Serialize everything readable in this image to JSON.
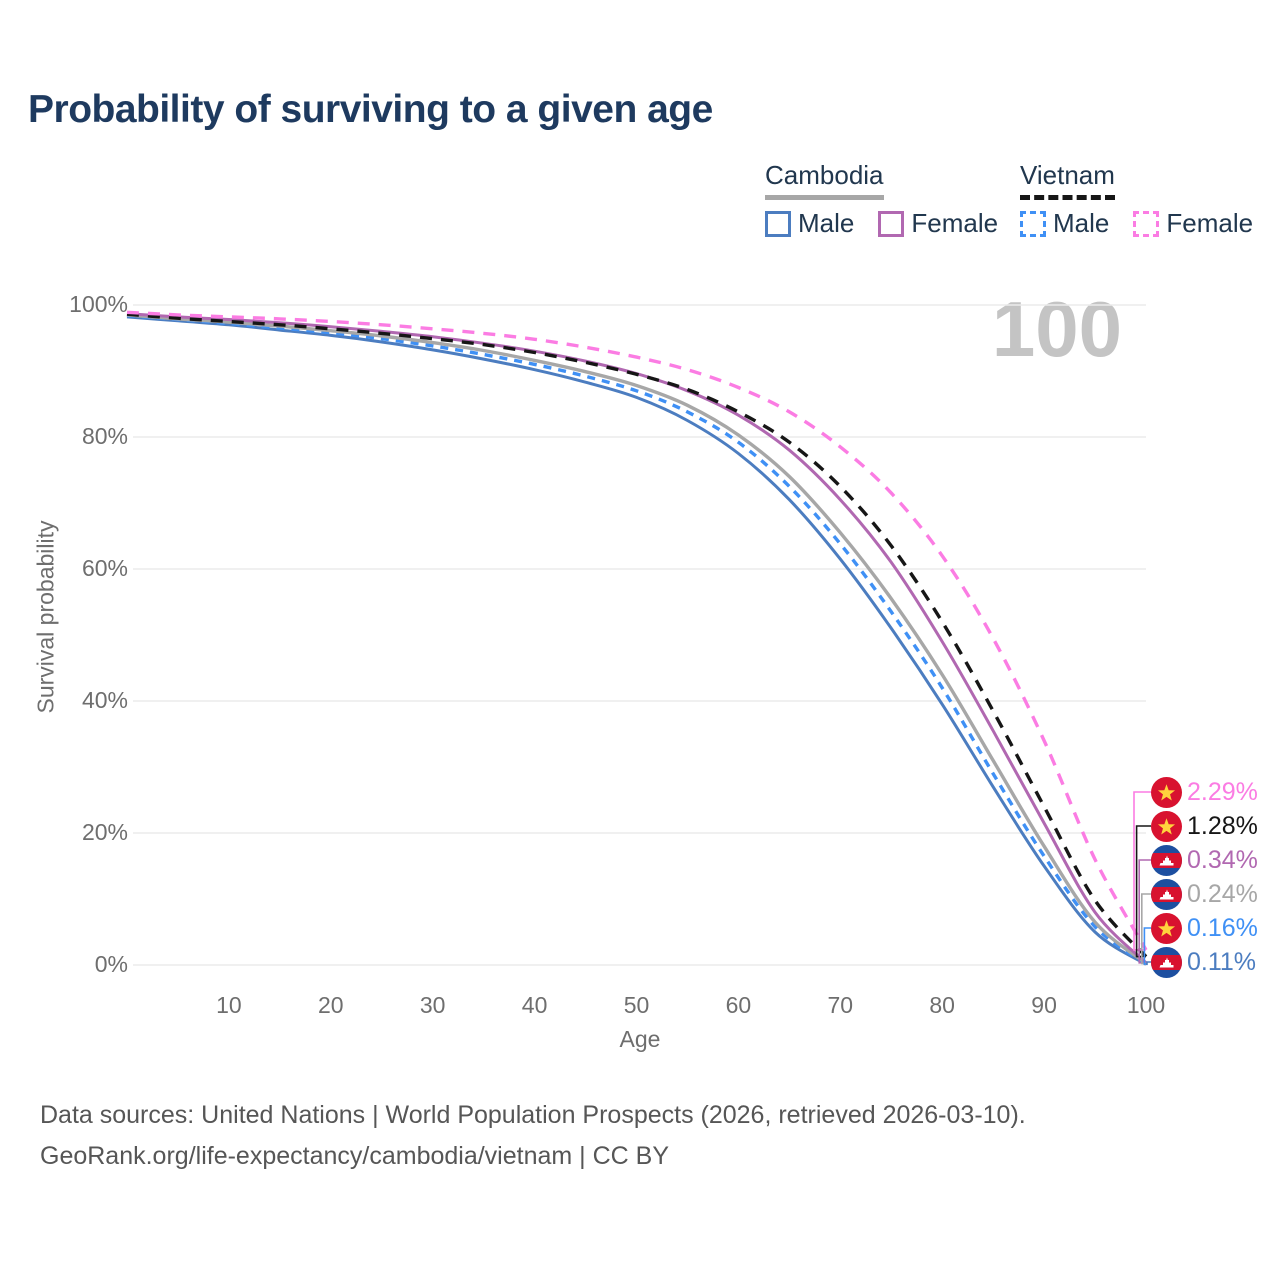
{
  "header": {
    "title": "Probability of surviving to a given age"
  },
  "legend": {
    "groups": [
      {
        "name": "Cambodia",
        "color": "#a7a7a7",
        "dashed": false,
        "items": [
          {
            "label": "Male",
            "color": "#4c7dc0",
            "dashed": false
          },
          {
            "label": "Female",
            "color": "#b168b1",
            "dashed": false
          }
        ]
      },
      {
        "name": "Vietnam",
        "color": "#161616",
        "dashed": true,
        "items": [
          {
            "label": "Male",
            "color": "#3f90f5",
            "dashed": true
          },
          {
            "label": "Female",
            "color": "#fb7ce3",
            "dashed": true
          }
        ]
      }
    ]
  },
  "axes": {
    "y": {
      "label": "Survival probability",
      "ticks": [
        "100%",
        "80%",
        "60%",
        "40%",
        "20%",
        "0%"
      ],
      "tick_values": [
        100,
        80,
        60,
        40,
        20,
        0
      ]
    },
    "x": {
      "label": "Age",
      "ticks": [
        10,
        20,
        30,
        40,
        50,
        60,
        70,
        80,
        90,
        100
      ]
    }
  },
  "watermark": "100",
  "chart_data": {
    "type": "line",
    "title": "Probability of surviving to a given age",
    "xlabel": "Age",
    "ylabel": "Survival probability",
    "x_range": [
      0,
      100
    ],
    "y_range_pct": [
      0,
      100
    ],
    "grid": true,
    "legend_position": "top-right",
    "ages": [
      0,
      5,
      10,
      15,
      20,
      25,
      30,
      35,
      40,
      45,
      50,
      55,
      60,
      65,
      70,
      75,
      80,
      85,
      90,
      95,
      100
    ],
    "series": [
      {
        "id": "cambodia-male",
        "name": "Cambodia Male",
        "country": "Cambodia",
        "sex": "male",
        "color": "#4c7dc0",
        "dashed": false,
        "flag": "cambodia",
        "end_label": "0.11%",
        "values": [
          98.2,
          97.6,
          97.0,
          96.2,
          95.4,
          94.4,
          93.2,
          91.8,
          90.2,
          88.3,
          86.0,
          82.5,
          77.5,
          70.5,
          61.5,
          51.0,
          39.5,
          27.0,
          15.0,
          5.0,
          0.11
        ]
      },
      {
        "id": "vietnam-male",
        "name": "Vietnam Male",
        "country": "Vietnam",
        "sex": "male",
        "color": "#3f90f5",
        "dashed": true,
        "flag": "vietnam",
        "end_label": "0.16%",
        "values": [
          98.4,
          97.8,
          97.2,
          96.5,
          95.8,
          94.9,
          93.8,
          92.5,
          91.0,
          89.2,
          87.0,
          83.8,
          79.2,
          72.5,
          63.8,
          53.5,
          42.0,
          29.0,
          16.5,
          5.8,
          0.16
        ]
      },
      {
        "id": "cambodia-total",
        "name": "Cambodia",
        "country": "Cambodia",
        "sex": "both",
        "color": "#a7a7a7",
        "dashed": false,
        "flag": "cambodia",
        "end_label": "0.24%",
        "values": [
          98.5,
          97.9,
          97.4,
          96.8,
          96.1,
          95.3,
          94.3,
          93.1,
          91.6,
          89.9,
          87.8,
          84.8,
          80.3,
          74.0,
          65.5,
          55.5,
          44.0,
          31.0,
          18.0,
          6.5,
          0.24
        ]
      },
      {
        "id": "cambodia-female",
        "name": "Cambodia Female",
        "country": "Cambodia",
        "sex": "female",
        "color": "#b168b1",
        "dashed": false,
        "flag": "cambodia",
        "end_label": "0.34%",
        "values": [
          98.7,
          98.2,
          97.8,
          97.3,
          96.7,
          96.0,
          95.2,
          94.2,
          93.0,
          91.5,
          89.6,
          87.0,
          83.3,
          78.0,
          70.5,
          61.0,
          49.0,
          35.5,
          21.5,
          8.0,
          0.34
        ]
      },
      {
        "id": "vietnam-total",
        "name": "Vietnam",
        "country": "Vietnam",
        "sex": "both",
        "color": "#161616",
        "dashed": true,
        "flag": "vietnam",
        "end_label": "1.28%",
        "values": [
          98.6,
          98.0,
          97.5,
          97.0,
          96.4,
          95.7,
          94.9,
          94.0,
          92.8,
          91.3,
          89.5,
          87.2,
          83.8,
          79.2,
          72.5,
          63.5,
          52.0,
          38.5,
          24.0,
          9.8,
          1.28
        ]
      },
      {
        "id": "vietnam-female",
        "name": "Vietnam Female",
        "country": "Vietnam",
        "sex": "female",
        "color": "#fb7ce3",
        "dashed": true,
        "flag": "vietnam",
        "end_label": "2.29%",
        "values": [
          98.9,
          98.5,
          98.2,
          97.9,
          97.5,
          97.0,
          96.4,
          95.7,
          94.8,
          93.6,
          92.1,
          90.2,
          87.5,
          83.8,
          78.5,
          71.5,
          62.0,
          49.5,
          34.0,
          16.0,
          2.29
        ]
      }
    ]
  },
  "footer": {
    "line1": "Data sources: United Nations | World Population Prospects (2026, retrieved 2026-03-10).",
    "line2": "GeoRank.org/life-expectancy/cambodia/vietnam | CC BY"
  }
}
